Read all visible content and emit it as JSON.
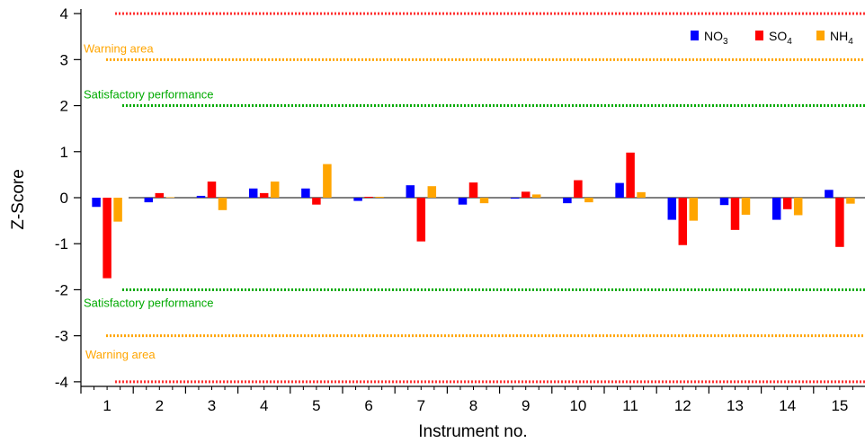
{
  "chart_data": {
    "type": "bar",
    "title": "",
    "xlabel": "Instrument no.",
    "ylabel": "Z-Score",
    "ylim": [
      -4.1,
      4.1
    ],
    "yticks": [
      4,
      3,
      2,
      1,
      0,
      -1,
      -2,
      -3,
      -4
    ],
    "ytick_labels": [
      "4",
      "3",
      "2",
      "1",
      "0",
      "-1",
      "-2",
      "-3",
      "-4"
    ],
    "categories": [
      "1",
      "2",
      "3",
      "4",
      "5",
      "6",
      "7",
      "8",
      "9",
      "10",
      "11",
      "12",
      "13",
      "14",
      "15"
    ],
    "grid": false,
    "legend_position": "top-right",
    "series": [
      {
        "name": "NO",
        "sub": "3",
        "color": "#0000ff",
        "values": [
          -0.2,
          -0.1,
          0.04,
          0.2,
          0.2,
          -0.07,
          0.27,
          -0.15,
          -0.02,
          -0.12,
          0.32,
          -0.48,
          -0.16,
          -0.48,
          0.17
        ]
      },
      {
        "name": "SO",
        "sub": "4",
        "color": "#ff0000",
        "values": [
          -1.75,
          0.1,
          0.35,
          0.1,
          -0.15,
          0.02,
          -0.95,
          0.33,
          0.13,
          0.38,
          0.98,
          -1.03,
          -0.7,
          -0.25,
          -1.07
        ]
      },
      {
        "name": "NH",
        "sub": "4",
        "color": "#ffa500",
        "values": [
          -0.52,
          0.01,
          -0.27,
          0.35,
          0.73,
          0.02,
          0.25,
          -0.12,
          0.07,
          -0.1,
          0.12,
          -0.5,
          -0.37,
          -0.38,
          -0.13
        ]
      }
    ],
    "reference_lines": [
      {
        "value": 4,
        "color": "#ff3030",
        "label": ""
      },
      {
        "value": 3,
        "color": "#ffa500",
        "label": "Warning area"
      },
      {
        "value": 2,
        "color": "#00aa00",
        "label": "Satisfactory performance"
      },
      {
        "value": -2,
        "color": "#00aa00",
        "label": "Satisfactory performance"
      },
      {
        "value": -3,
        "color": "#ffa500",
        "label": ""
      },
      {
        "value": -4,
        "color": "#ff3030",
        "label": ""
      }
    ],
    "extra_annotations": [
      {
        "text": "Warning area",
        "near_value": -3.4,
        "color": "#ffa500"
      }
    ]
  }
}
